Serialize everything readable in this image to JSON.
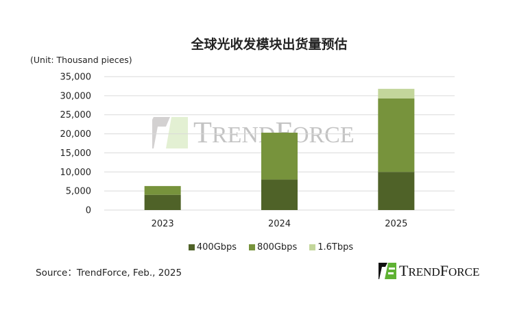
{
  "chart_data": {
    "type": "bar",
    "stacked": true,
    "title": "全球光收发模块出货量预估",
    "ylabel": "(Unit: Thousand pieces)",
    "categories": [
      "2023",
      "2024",
      "2025"
    ],
    "series": [
      {
        "name": "400Gbps",
        "values": [
          4000,
          8000,
          10000
        ],
        "color": "#4f6228"
      },
      {
        "name": "800Gbps",
        "values": [
          2300,
          12300,
          19300
        ],
        "color": "#77933c"
      },
      {
        "name": "1.6Tbps",
        "values": [
          0,
          0,
          2500
        ],
        "color": "#c3d69b"
      }
    ],
    "ylim": [
      0,
      35000
    ],
    "yticks": [
      "0",
      "5,000",
      "10,000",
      "15,000",
      "20,000",
      "25,000",
      "30,000",
      "35,000"
    ],
    "grid": true,
    "legend_position": "bottom"
  },
  "source": "Source：TrendForce, Feb., 2025",
  "logo_text": "TrendForce",
  "watermark_text": "TrendForce"
}
